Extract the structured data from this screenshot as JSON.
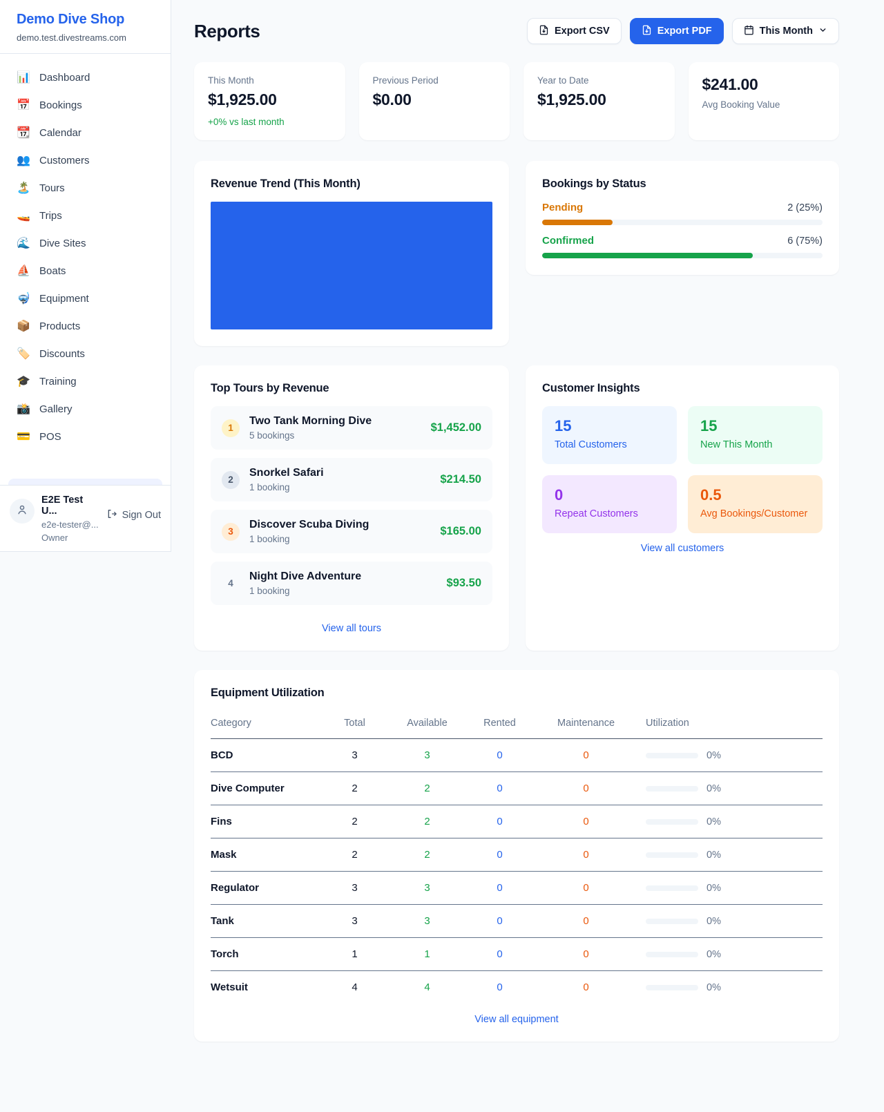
{
  "sidebar": {
    "shop_name": "Demo Dive Shop",
    "domain": "demo.test.divestreams.com",
    "nav_items": [
      {
        "icon": "📊",
        "icon_name": "bar-chart-icon",
        "label": "Dashboard"
      },
      {
        "icon": "📅",
        "icon_name": "calendar-icon",
        "label": "Bookings"
      },
      {
        "icon": "📆",
        "icon_name": "tear-off-calendar-icon",
        "label": "Calendar"
      },
      {
        "icon": "👥",
        "icon_name": "people-icon",
        "label": "Customers"
      },
      {
        "icon": "🏝️",
        "icon_name": "island-icon",
        "label": "Tours"
      },
      {
        "icon": "🚤",
        "icon_name": "speedboat-icon",
        "label": "Trips"
      },
      {
        "icon": "🌊",
        "icon_name": "wave-icon",
        "label": "Dive Sites"
      },
      {
        "icon": "⛵",
        "icon_name": "sailboat-icon",
        "label": "Boats"
      },
      {
        "icon": "🤿",
        "icon_name": "diving-mask-icon",
        "label": "Equipment"
      },
      {
        "icon": "📦",
        "icon_name": "package-icon",
        "label": "Products"
      },
      {
        "icon": "🏷️",
        "icon_name": "tag-icon",
        "label": "Discounts"
      },
      {
        "icon": "🎓",
        "icon_name": "graduation-cap-icon",
        "label": "Training"
      },
      {
        "icon": "📸",
        "icon_name": "camera-icon",
        "label": "Gallery"
      },
      {
        "icon": "💳",
        "icon_name": "credit-card-icon",
        "label": "POS"
      }
    ],
    "user": {
      "name": "E2E Test U...",
      "email": "e2e-tester@...",
      "role": "Owner",
      "sign_out_label": "Sign Out"
    }
  },
  "header": {
    "title": "Reports",
    "export_csv_label": "Export CSV",
    "export_pdf_label": "Export PDF",
    "period_label": "This Month"
  },
  "stats": [
    {
      "label": "This Month",
      "value": "$1,925.00",
      "delta": "+0% vs last month"
    },
    {
      "label": "Previous Period",
      "value": "$0.00"
    },
    {
      "label": "Year to Date",
      "value": "$1,925.00"
    },
    {
      "label": "Avg Booking Value",
      "value": "$241.00",
      "value_first": true
    }
  ],
  "revenue_trend": {
    "title": "Revenue Trend (This Month)",
    "chart_color": "#2563eb"
  },
  "bookings_by_status": {
    "title": "Bookings by Status",
    "rows": [
      {
        "label": "Pending",
        "value_text": "2 (25%)",
        "percent": 25,
        "color": "#d97706"
      },
      {
        "label": "Confirmed",
        "value_text": "6 (75%)",
        "percent": 75,
        "color": "#16a34a"
      }
    ]
  },
  "top_tours": {
    "title": "Top Tours by Revenue",
    "view_all_label": "View all tours",
    "rows": [
      {
        "rank": "1",
        "name": "Two Tank Morning Dive",
        "bookings": "5 bookings",
        "revenue": "$1,452.00",
        "badge_bg": "#fef3c7",
        "badge_color": "#d97706"
      },
      {
        "rank": "2",
        "name": "Snorkel Safari",
        "bookings": "1 booking",
        "revenue": "$214.50",
        "badge_bg": "#e2e8f0",
        "badge_color": "#475569"
      },
      {
        "rank": "3",
        "name": "Discover Scuba Diving",
        "bookings": "1 booking",
        "revenue": "$165.00",
        "badge_bg": "#ffedd5",
        "badge_color": "#ea580c"
      },
      {
        "rank": "4",
        "name": "Night Dive Adventure",
        "bookings": "1 booking",
        "revenue": "$93.50",
        "badge_bg": "transparent",
        "badge_color": "#64748b"
      }
    ]
  },
  "customer_insights": {
    "title": "Customer Insights",
    "view_all_label": "View all customers",
    "tiles": [
      {
        "value": "15",
        "label": "Total Customers",
        "bg": "#eff6ff",
        "color": "#2563eb"
      },
      {
        "value": "15",
        "label": "New This Month",
        "bg": "#ecfdf5",
        "color": "#16a34a"
      },
      {
        "value": "0",
        "label": "Repeat Customers",
        "bg": "#f3e8ff",
        "color": "#9333ea"
      },
      {
        "value": "0.5",
        "label": "Avg Bookings/Customer",
        "bg": "#ffedd5",
        "color": "#ea580c"
      }
    ]
  },
  "equipment": {
    "title": "Equipment Utilization",
    "view_all_label": "View all equipment",
    "columns": [
      "Category",
      "Total",
      "Available",
      "Rented",
      "Maintenance",
      "Utilization"
    ],
    "rows": [
      {
        "category": "BCD",
        "total": "3",
        "available": "3",
        "rented": "0",
        "maintenance": "0",
        "utilization": "0%",
        "utilization_percent": 0
      },
      {
        "category": "Dive Computer",
        "total": "2",
        "available": "2",
        "rented": "0",
        "maintenance": "0",
        "utilization": "0%",
        "utilization_percent": 0
      },
      {
        "category": "Fins",
        "total": "2",
        "available": "2",
        "rented": "0",
        "maintenance": "0",
        "utilization": "0%",
        "utilization_percent": 0
      },
      {
        "category": "Mask",
        "total": "2",
        "available": "2",
        "rented": "0",
        "maintenance": "0",
        "utilization": "0%",
        "utilization_percent": 0
      },
      {
        "category": "Regulator",
        "total": "3",
        "available": "3",
        "rented": "0",
        "maintenance": "0",
        "utilization": "0%",
        "utilization_percent": 0
      },
      {
        "category": "Tank",
        "total": "3",
        "available": "3",
        "rented": "0",
        "maintenance": "0",
        "utilization": "0%",
        "utilization_percent": 0
      },
      {
        "category": "Torch",
        "total": "1",
        "available": "1",
        "rented": "0",
        "maintenance": "0",
        "utilization": "0%",
        "utilization_percent": 0
      },
      {
        "category": "Wetsuit",
        "total": "4",
        "available": "4",
        "rented": "0",
        "maintenance": "0",
        "utilization": "0%",
        "utilization_percent": 0
      }
    ]
  }
}
